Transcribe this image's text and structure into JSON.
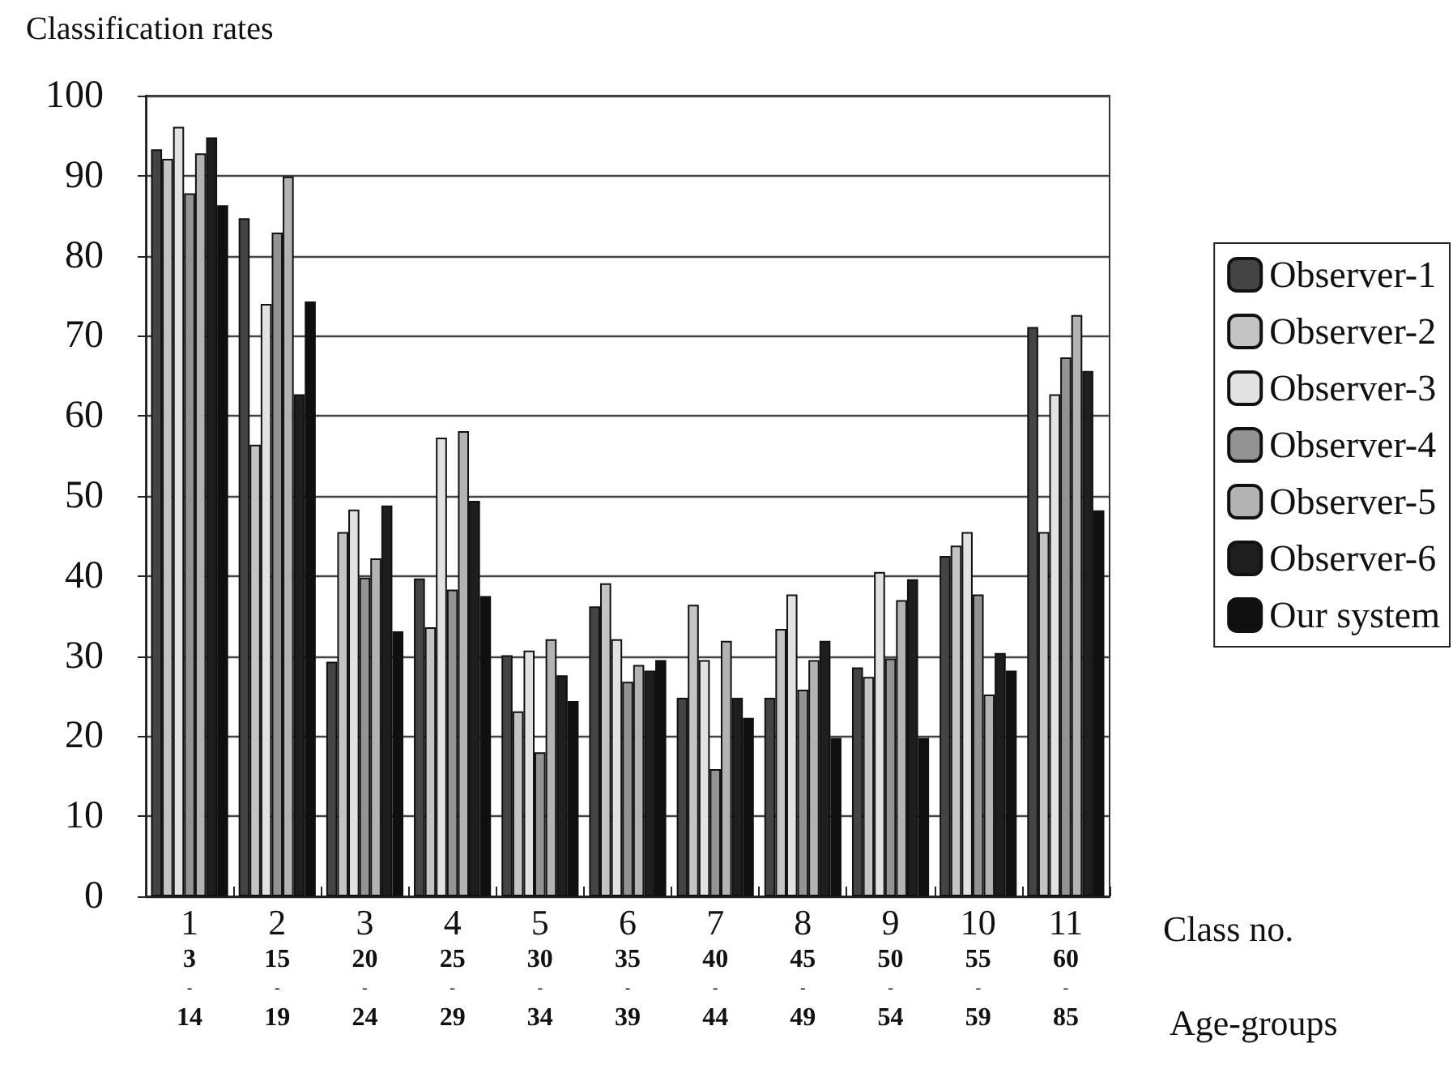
{
  "chart_data": {
    "type": "bar",
    "ylabel": "Classification rates",
    "xlabel": "Class no.",
    "annotations": [
      "Age-groups"
    ],
    "categories": [
      "1\n3\n-\n14",
      "2\n15\n-\n19",
      "3\n20\n-\n24",
      "4\n25\n-\n29",
      "5\n30\n-\n34",
      "6\n35\n-\n39",
      "7\n40\n-\n44",
      "8\n45\n-\n49",
      "9\n50\n-\n54",
      "10\n55\n-\n59",
      "11\n60\n-\n85"
    ],
    "series": [
      {
        "name": "Observer-1",
        "color": "#444444",
        "values": [
          93.3,
          84.7,
          29.3,
          39.7,
          30.1,
          36.2,
          24.8,
          24.8,
          28.6,
          42.5,
          71.1
        ]
      },
      {
        "name": "Observer-2",
        "color": "#c4c4c4",
        "values": [
          92.1,
          56.4,
          45.5,
          33.6,
          23.1,
          39.1,
          36.4,
          33.4,
          27.4,
          43.8,
          45.5
        ]
      },
      {
        "name": "Observer-3",
        "color": "#e2e2e2",
        "values": [
          96.1,
          74.0,
          48.3,
          57.3,
          30.7,
          32.1,
          29.5,
          37.7,
          40.5,
          45.5,
          62.7
        ]
      },
      {
        "name": "Observer-4",
        "color": "#939393",
        "values": [
          87.8,
          82.9,
          39.8,
          38.3,
          18.0,
          26.8,
          15.9,
          25.8,
          29.7,
          37.7,
          67.3
        ]
      },
      {
        "name": "Observer-5",
        "color": "#b3b3b3",
        "values": [
          92.8,
          89.9,
          42.2,
          58.1,
          32.1,
          28.9,
          31.9,
          29.5,
          37.0,
          25.2,
          72.6
        ]
      },
      {
        "name": "Observer-6",
        "color": "#1e1e1e",
        "values": [
          94.8,
          62.7,
          48.8,
          49.4,
          27.6,
          28.2,
          24.8,
          31.9,
          39.6,
          30.4,
          65.6
        ]
      },
      {
        "name": "Our system",
        "color": "#0f0f0f",
        "values": [
          86.3,
          74.3,
          33.1,
          37.5,
          24.4,
          29.5,
          22.3,
          19.8,
          19.8,
          28.2,
          48.2
        ]
      }
    ],
    "ylim": [
      0,
      100
    ],
    "yticks": [
      0,
      10,
      20,
      30,
      40,
      50,
      60,
      70,
      80,
      90,
      100
    ],
    "grid": "y",
    "legend": "right"
  }
}
